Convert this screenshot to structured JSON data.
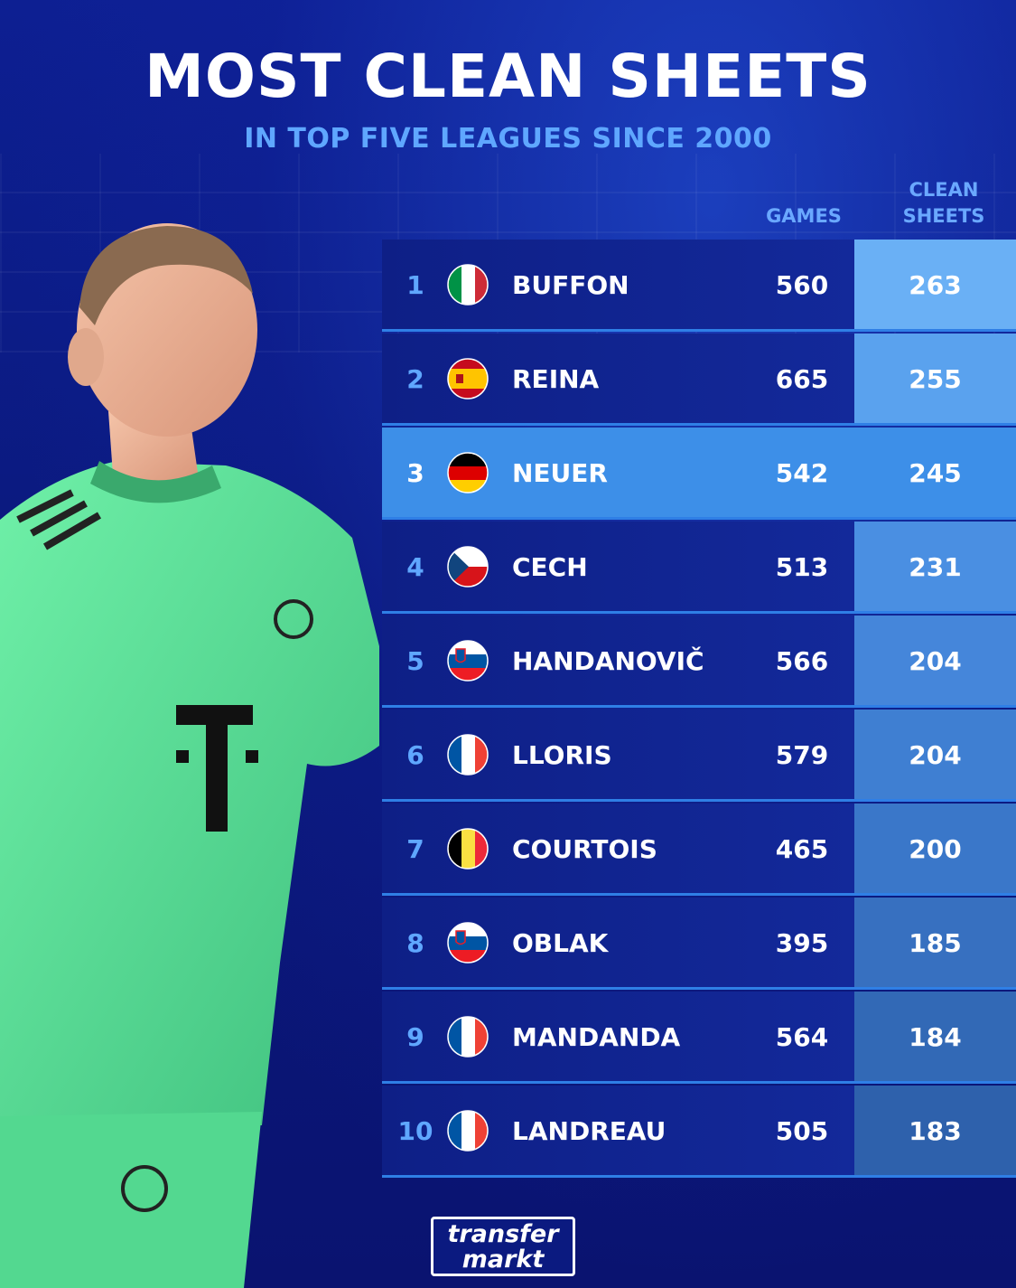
{
  "title": "MOST CLEAN SHEETS",
  "subtitle": "IN TOP FIVE LEAGUES SINCE 2000",
  "columns": {
    "games": "GAMES",
    "clean_sheets_1": "CLEAN",
    "clean_sheets_2": "SHEETS"
  },
  "rows": [
    {
      "rank": "1",
      "flag": "italy-flag-icon",
      "name": "BUFFON",
      "games": "560",
      "clean_sheets": "263"
    },
    {
      "rank": "2",
      "flag": "spain-flag-icon",
      "name": "REINA",
      "games": "665",
      "clean_sheets": "255"
    },
    {
      "rank": "3",
      "flag": "germany-flag-icon",
      "name": "NEUER",
      "games": "542",
      "clean_sheets": "245"
    },
    {
      "rank": "4",
      "flag": "czech-flag-icon",
      "name": "CECH",
      "games": "513",
      "clean_sheets": "231"
    },
    {
      "rank": "5",
      "flag": "slovenia-flag-icon",
      "name": "HANDANOVIČ",
      "games": "566",
      "clean_sheets": "204"
    },
    {
      "rank": "6",
      "flag": "france-flag-icon",
      "name": "LLORIS",
      "games": "579",
      "clean_sheets": "204"
    },
    {
      "rank": "7",
      "flag": "belgium-flag-icon",
      "name": "COURTOIS",
      "games": "465",
      "clean_sheets": "200"
    },
    {
      "rank": "8",
      "flag": "slovenia-flag-icon",
      "name": "OBLAK",
      "games": "395",
      "clean_sheets": "185"
    },
    {
      "rank": "9",
      "flag": "france-flag-icon",
      "name": "MANDANDA",
      "games": "564",
      "clean_sheets": "184"
    },
    {
      "rank": "10",
      "flag": "france-flag-icon",
      "name": "LANDREAU",
      "games": "505",
      "clean_sheets": "183"
    }
  ],
  "logo": {
    "line1": "transfer",
    "line2": "markt"
  },
  "colors": {
    "accent": "#5fa7ff",
    "highlight_row": "#3d8fe8",
    "jersey": "#5fe39a"
  }
}
